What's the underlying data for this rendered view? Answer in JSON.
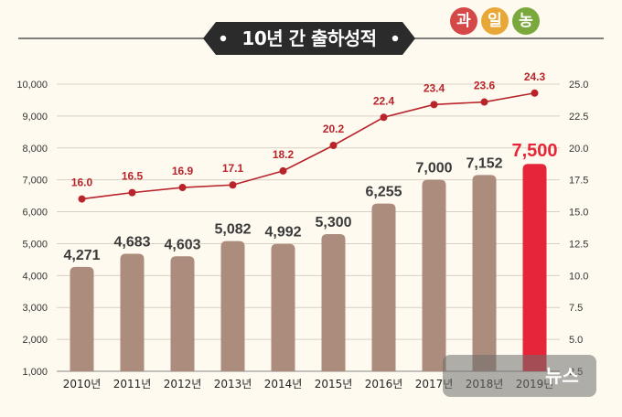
{
  "title": "10년 간 출하성적",
  "chart_data": {
    "type": "bar",
    "categories": [
      "2010년",
      "2011년",
      "2012년",
      "2013년",
      "2014년",
      "2015년",
      "2016년",
      "2017년",
      "2018년",
      "2019년"
    ],
    "series": [
      {
        "values": [
          4271,
          4683,
          4603,
          5082,
          4992,
          5300,
          6255,
          7000,
          7152,
          7500
        ],
        "labels": [
          "4,271",
          "4,683",
          "4,603",
          "5,082",
          "4,992",
          "5,300",
          "6,255",
          "7,000",
          "7,152",
          "7,500"
        ]
      },
      {
        "type": "line",
        "values": [
          16.0,
          16.5,
          16.9,
          17.1,
          18.2,
          20.2,
          22.4,
          23.4,
          23.6,
          24.3
        ],
        "labels": [
          "16.0",
          "16.5",
          "16.9",
          "17.1",
          "18.2",
          "20.2",
          "22.4",
          "23.4",
          "23.6",
          "24.3"
        ]
      }
    ],
    "ylim_left": [
      1000,
      10000
    ],
    "ylim_right": [
      2.5,
      25.0
    ],
    "yticks_left": [
      "1,000",
      "2,000",
      "3,000",
      "4,000",
      "5,000",
      "6,000",
      "7,000",
      "8,000",
      "9,000",
      "10,000"
    ],
    "yticks_right": [
      "2.5",
      "5.0",
      "7.5",
      "10.0",
      "12.5",
      "15.0",
      "17.5",
      "20.0",
      "22.5",
      "25.0"
    ],
    "grid": true,
    "colors": {
      "bar": "#ac8c7c",
      "highlight_bar": "#e62638",
      "line": "#b8242a",
      "bar_label": "#3a3a3a",
      "line_label": "#b8242a"
    }
  },
  "watermark": {
    "badges": [
      "과",
      "일",
      "농"
    ],
    "text": "뉴스",
    "colors": [
      "#d44848",
      "#e8a838",
      "#7aa83c"
    ]
  }
}
